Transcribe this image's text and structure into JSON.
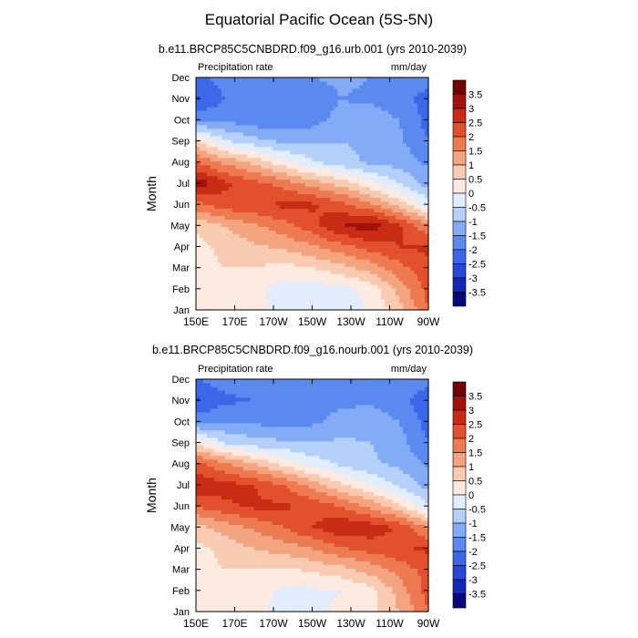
{
  "page": {
    "title": "Equatorial Pacific Ocean (5S-5N)"
  },
  "chart_data": [
    {
      "type": "heatmap",
      "title": "b.e11.BRCP85C5CNBDRD.f09_g16.urb.001 (yrs 2010-2039)",
      "left_label": "Precipitation rate",
      "right_label": "mm/day",
      "xlabel": "",
      "ylabel": "Month",
      "x_ticks": [
        "150E",
        "170E",
        "170W",
        "150W",
        "130W",
        "110W",
        "90W"
      ],
      "y_ticks": [
        "Jan",
        "Feb",
        "Mar",
        "Apr",
        "May",
        "Jun",
        "Jul",
        "Aug",
        "Sep",
        "Oct",
        "Nov",
        "Dec"
      ],
      "x_range": [
        150,
        270
      ],
      "z_units": "mm/day",
      "levels": [
        -3.5,
        -3,
        -2.5,
        -2,
        -1.5,
        -1,
        -0.5,
        0,
        0.5,
        1,
        1.5,
        2,
        2.5,
        3,
        3.5
      ],
      "level_labels": [
        "3.5",
        "3",
        "2.5",
        "2",
        "1.5",
        "1",
        "0.5",
        "0",
        "-0.5",
        "-1",
        "-1.5",
        "-2",
        "-2.5",
        "-3",
        "-3.5"
      ],
      "colors": [
        "#08087a",
        "#1428b8",
        "#2a48d8",
        "#3a68e8",
        "#5a8af0",
        "#84acf6",
        "#b4d0fb",
        "#e2eefd",
        "#fdeae0",
        "#f9cbb1",
        "#f4a47f",
        "#ee7a52",
        "#e2502e",
        "#c92c14",
        "#a0120a",
        "#700404"
      ],
      "grid_x": [
        150,
        165,
        180,
        195,
        210,
        225,
        240,
        255,
        270
      ],
      "grid_y": [
        "Jan",
        "Feb",
        "Mar",
        "Apr",
        "May",
        "Jun",
        "Jul",
        "Aug",
        "Sep",
        "Oct",
        "Nov",
        "Dec"
      ],
      "values": [
        [
          0.0,
          0.3,
          0.2,
          -0.2,
          -0.3,
          -0.2,
          0.0,
          0.8,
          2.0
        ],
        [
          0.1,
          0.4,
          0.1,
          -0.2,
          -0.3,
          -0.2,
          0.2,
          1.2,
          2.2
        ],
        [
          0.2,
          0.5,
          0.5,
          0.3,
          0.5,
          0.8,
          1.2,
          1.8,
          2.4
        ],
        [
          0.3,
          0.7,
          0.9,
          1.1,
          1.4,
          1.8,
          2.2,
          2.5,
          2.6
        ],
        [
          0.6,
          1.0,
          1.4,
          1.8,
          2.3,
          3.0,
          3.3,
          2.6,
          1.6
        ],
        [
          1.8,
          2.3,
          2.4,
          2.6,
          2.6,
          2.2,
          1.6,
          0.8,
          -0.3
        ],
        [
          3.4,
          2.6,
          2.2,
          1.8,
          1.3,
          0.8,
          0.2,
          -0.5,
          -1.2
        ],
        [
          2.0,
          1.4,
          0.9,
          0.2,
          -0.4,
          -0.8,
          -1.1,
          -1.2,
          -1.6
        ],
        [
          0.6,
          -0.4,
          -0.8,
          -1.1,
          -1.1,
          -1.0,
          -1.1,
          -1.4,
          -2.0
        ],
        [
          -1.6,
          -1.6,
          -1.8,
          -1.9,
          -1.7,
          -1.3,
          -1.2,
          -1.5,
          -2.2
        ],
        [
          -2.6,
          -2.0,
          -2.0,
          -1.9,
          -1.8,
          -1.5,
          -1.6,
          -1.8,
          -2.2
        ],
        [
          -2.2,
          -1.8,
          -1.7,
          -1.6,
          -1.5,
          -1.4,
          -1.5,
          -1.7,
          -1.8
        ]
      ]
    },
    {
      "type": "heatmap",
      "title": "b.e11.BRCP85C5CNBDRD.f09_g16.nourb.001 (yrs 2010-2039)",
      "left_label": "Precipitation rate",
      "right_label": "mm/day",
      "xlabel": "",
      "ylabel": "Month",
      "x_ticks": [
        "150E",
        "170E",
        "170W",
        "150W",
        "130W",
        "110W",
        "90W"
      ],
      "y_ticks": [
        "Jan",
        "Feb",
        "Mar",
        "Apr",
        "May",
        "Jun",
        "Jul",
        "Aug",
        "Sep",
        "Oct",
        "Nov",
        "Dec"
      ],
      "x_range": [
        150,
        270
      ],
      "z_units": "mm/day",
      "levels": [
        -3.5,
        -3,
        -2.5,
        -2,
        -1.5,
        -1,
        -0.5,
        0,
        0.5,
        1,
        1.5,
        2,
        2.5,
        3,
        3.5
      ],
      "level_labels": [
        "3.5",
        "3",
        "2.5",
        "2",
        "1.5",
        "1",
        "0.5",
        "0",
        "-0.5",
        "-1",
        "-1.5",
        "-2",
        "-2.5",
        "-3",
        "-3.5"
      ],
      "colors": [
        "#08087a",
        "#1428b8",
        "#2a48d8",
        "#3a68e8",
        "#5a8af0",
        "#84acf6",
        "#b4d0fb",
        "#e2eefd",
        "#fdeae0",
        "#f9cbb1",
        "#f4a47f",
        "#ee7a52",
        "#e2502e",
        "#c92c14",
        "#a0120a",
        "#700404"
      ],
      "grid_x": [
        150,
        165,
        180,
        195,
        210,
        225,
        240,
        255,
        270
      ],
      "grid_y": [
        "Jan",
        "Feb",
        "Mar",
        "Apr",
        "May",
        "Jun",
        "Jul",
        "Aug",
        "Sep",
        "Oct",
        "Nov",
        "Dec"
      ],
      "values": [
        [
          0.0,
          0.4,
          0.2,
          -0.2,
          -0.1,
          0.1,
          0.3,
          1.0,
          2.0
        ],
        [
          0.1,
          0.5,
          0.2,
          -0.1,
          -0.1,
          0.0,
          0.3,
          1.2,
          2.2
        ],
        [
          0.2,
          0.5,
          0.5,
          0.4,
          0.6,
          0.8,
          1.2,
          1.7,
          2.2
        ],
        [
          0.3,
          0.7,
          1.0,
          1.2,
          1.5,
          1.9,
          2.2,
          2.4,
          2.6
        ],
        [
          0.8,
          1.2,
          1.6,
          2.0,
          2.5,
          2.9,
          2.8,
          2.4,
          1.4
        ],
        [
          2.0,
          2.4,
          2.6,
          2.6,
          2.4,
          2.0,
          1.4,
          0.6,
          -0.4
        ],
        [
          2.9,
          2.7,
          2.5,
          2.0,
          1.3,
          0.6,
          0.0,
          -0.6,
          -1.2
        ],
        [
          2.2,
          1.6,
          1.0,
          0.4,
          -0.2,
          -0.6,
          -0.9,
          -1.1,
          -1.6
        ],
        [
          0.4,
          -0.5,
          -0.8,
          -0.9,
          -1.0,
          -0.9,
          -1.0,
          -1.3,
          -2.0
        ],
        [
          -1.6,
          -1.5,
          -1.6,
          -1.7,
          -1.6,
          -1.3,
          -1.2,
          -1.5,
          -2.2
        ],
        [
          -2.6,
          -2.1,
          -2.0,
          -1.9,
          -1.8,
          -1.6,
          -1.6,
          -1.8,
          -2.4
        ],
        [
          -2.0,
          -1.8,
          -1.7,
          -1.6,
          -1.6,
          -1.5,
          -1.6,
          -1.7,
          -1.8
        ]
      ]
    }
  ]
}
